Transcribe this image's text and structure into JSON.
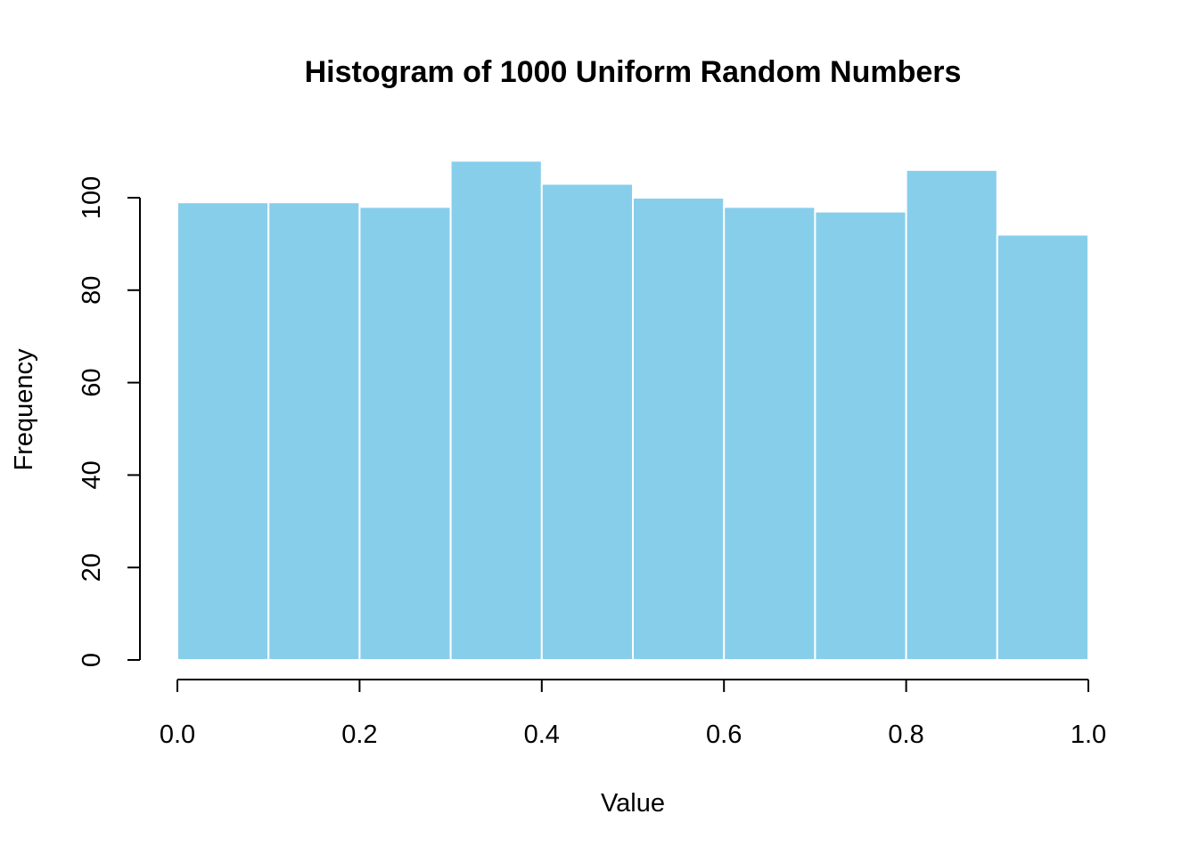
{
  "chart_data": {
    "type": "bar",
    "title": "Histogram of 1000 Uniform Random Numbers",
    "xlabel": "Value",
    "ylabel": "Frequency",
    "bins": [
      {
        "start": 0.0,
        "end": 0.1,
        "count": 99
      },
      {
        "start": 0.1,
        "end": 0.2,
        "count": 99
      },
      {
        "start": 0.2,
        "end": 0.3,
        "count": 98
      },
      {
        "start": 0.3,
        "end": 0.4,
        "count": 108
      },
      {
        "start": 0.4,
        "end": 0.5,
        "count": 103
      },
      {
        "start": 0.5,
        "end": 0.6,
        "count": 100
      },
      {
        "start": 0.6,
        "end": 0.7,
        "count": 98
      },
      {
        "start": 0.7,
        "end": 0.8,
        "count": 97
      },
      {
        "start": 0.8,
        "end": 0.9,
        "count": 106
      },
      {
        "start": 0.9,
        "end": 1.0,
        "count": 92
      }
    ],
    "xlim": [
      0.0,
      1.0
    ],
    "ylim": [
      0,
      100
    ],
    "x_ticks": [
      "0.0",
      "0.2",
      "0.4",
      "0.6",
      "0.8",
      "1.0"
    ],
    "y_ticks": [
      "0",
      "20",
      "40",
      "60",
      "80",
      "100"
    ],
    "bar_color": "#87CEEB",
    "bar_border_color": "#FFFFFF",
    "grid": false,
    "legend": "none"
  }
}
